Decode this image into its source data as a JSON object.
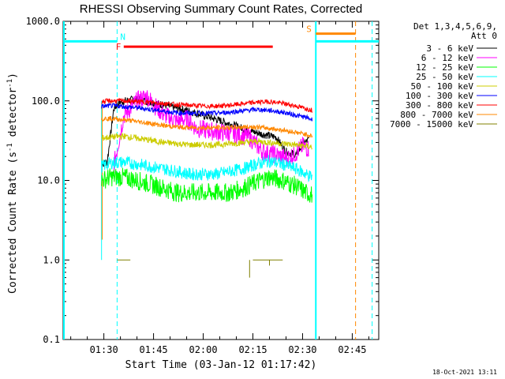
{
  "chart_data": {
    "type": "line",
    "title": "RHESSI Observing Summary Count Rates, Corrected",
    "xlabel": "Start Time (03-Jan-12 01:17:42)",
    "ylabel_main": "Corrected Count Rate (s",
    "ylabel_sup1": "-1",
    "ylabel_mid": " detector",
    "ylabel_sup2": "-1",
    "ylabel_end": ")",
    "y_scale": "log",
    "ylim": [
      0.1,
      1000.0
    ],
    "y_ticks": [
      {
        "value": 1000.0,
        "label": "1000.0"
      },
      {
        "value": 100.0,
        "label": "100.0"
      },
      {
        "value": 10.0,
        "label": "10.0"
      },
      {
        "value": 1.0,
        "label": "1.0"
      },
      {
        "value": 0.1,
        "label": "0.1"
      }
    ],
    "xlim_minutes": [
      17.7,
      59.0
    ],
    "x_ticks": [
      {
        "value": 30,
        "label": "01:30"
      },
      {
        "value": 45,
        "label": "01:45"
      },
      {
        "value": 60,
        "label": "02:00"
      },
      {
        "value": 75,
        "label": "02:15"
      },
      {
        "value": 90,
        "label": "02:30"
      },
      {
        "value": 105,
        "label": "02:45"
      }
    ],
    "x_unit": "minutes after 01:00 UT",
    "x_range": [
      17.7,
      113.0
    ],
    "legend_header": [
      "Det 1,3,4,5,6,9,",
      "Att 0"
    ],
    "series": [
      {
        "name": "3 - 6 keV",
        "color": "#000000",
        "points": [
          [
            29.3,
            16
          ],
          [
            31,
            17
          ],
          [
            33,
            80
          ],
          [
            35,
            97
          ],
          [
            38,
            103
          ],
          [
            42,
            102
          ],
          [
            46,
            93
          ],
          [
            50,
            85
          ],
          [
            54,
            78
          ],
          [
            58,
            70
          ],
          [
            62,
            62
          ],
          [
            66,
            55
          ],
          [
            70,
            48
          ],
          [
            74,
            42
          ],
          [
            78,
            38
          ],
          [
            82,
            35
          ],
          [
            85,
            23
          ],
          [
            88,
            21
          ],
          [
            90,
            28
          ],
          [
            92,
            33
          ]
        ]
      },
      {
        "name": "6 - 12 keV",
        "color": "#ff00ff",
        "points": [
          [
            33,
            15
          ],
          [
            36,
            65
          ],
          [
            40,
            100
          ],
          [
            43,
            115
          ],
          [
            45,
            90
          ],
          [
            48,
            68
          ],
          [
            52,
            55
          ],
          [
            55,
            60
          ],
          [
            58,
            45
          ],
          [
            62,
            42
          ],
          [
            66,
            40
          ],
          [
            70,
            38
          ],
          [
            74,
            35
          ],
          [
            78,
            23
          ],
          [
            82,
            21
          ],
          [
            85,
            19
          ],
          [
            88,
            22
          ],
          [
            90,
            27
          ],
          [
            92,
            25
          ]
        ]
      },
      {
        "name": "12 - 25 keV",
        "color": "#00ff00",
        "points": [
          [
            29.3,
            10
          ],
          [
            32,
            11
          ],
          [
            36,
            11
          ],
          [
            40,
            10
          ],
          [
            44,
            9
          ],
          [
            48,
            8
          ],
          [
            52,
            7
          ],
          [
            56,
            7
          ],
          [
            60,
            7
          ],
          [
            64,
            7
          ],
          [
            68,
            7
          ],
          [
            72,
            8
          ],
          [
            76,
            9.5
          ],
          [
            80,
            11
          ],
          [
            84,
            10
          ],
          [
            88,
            8.5
          ],
          [
            91,
            7
          ],
          [
            93,
            6.5
          ]
        ]
      },
      {
        "name": "25 - 50 keV",
        "color": "#00ffff",
        "points": [
          [
            29.3,
            15
          ],
          [
            32,
            16.5
          ],
          [
            36,
            17
          ],
          [
            40,
            16
          ],
          [
            44,
            15
          ],
          [
            48,
            14
          ],
          [
            52,
            13
          ],
          [
            56,
            12
          ],
          [
            60,
            12
          ],
          [
            64,
            12
          ],
          [
            68,
            13
          ],
          [
            72,
            14
          ],
          [
            76,
            16
          ],
          [
            80,
            17.5
          ],
          [
            84,
            16
          ],
          [
            88,
            14
          ],
          [
            91,
            12
          ],
          [
            93,
            11
          ]
        ]
      },
      {
        "name": "50 - 100 keV",
        "color": "#cccc00",
        "points": [
          [
            29.3,
            34
          ],
          [
            32,
            35
          ],
          [
            36,
            36
          ],
          [
            40,
            34
          ],
          [
            44,
            32
          ],
          [
            48,
            30
          ],
          [
            52,
            29
          ],
          [
            56,
            28
          ],
          [
            60,
            28
          ],
          [
            64,
            28
          ],
          [
            68,
            29
          ],
          [
            72,
            30
          ],
          [
            76,
            31
          ],
          [
            80,
            30
          ],
          [
            84,
            29
          ],
          [
            88,
            28
          ],
          [
            91,
            27
          ],
          [
            93,
            26
          ]
        ]
      },
      {
        "name": "100 - 300 keV",
        "color": "#0000ff",
        "points": [
          [
            29.3,
            85
          ],
          [
            32,
            87
          ],
          [
            36,
            85
          ],
          [
            40,
            82
          ],
          [
            44,
            78
          ],
          [
            48,
            74
          ],
          [
            52,
            71
          ],
          [
            56,
            70
          ],
          [
            60,
            70
          ],
          [
            64,
            70
          ],
          [
            68,
            72
          ],
          [
            72,
            75
          ],
          [
            76,
            78
          ],
          [
            80,
            76
          ],
          [
            84,
            72
          ],
          [
            88,
            66
          ],
          [
            91,
            62
          ],
          [
            93,
            58
          ]
        ]
      },
      {
        "name": "300 - 800 keV",
        "color": "#ff0000",
        "points": [
          [
            29.3,
            98
          ],
          [
            32,
            100
          ],
          [
            36,
            100
          ],
          [
            40,
            98
          ],
          [
            44,
            96
          ],
          [
            48,
            93
          ],
          [
            52,
            90
          ],
          [
            56,
            88
          ],
          [
            60,
            86
          ],
          [
            64,
            86
          ],
          [
            68,
            88
          ],
          [
            72,
            92
          ],
          [
            76,
            96
          ],
          [
            80,
            98
          ],
          [
            84,
            93
          ],
          [
            88,
            86
          ],
          [
            91,
            80
          ],
          [
            93,
            76
          ]
        ]
      },
      {
        "name": "800 - 7000 keV",
        "color": "#ff8800",
        "points": [
          [
            29.3,
            60
          ],
          [
            32,
            60
          ],
          [
            36,
            58
          ],
          [
            40,
            55
          ],
          [
            44,
            52
          ],
          [
            48,
            49
          ],
          [
            52,
            47
          ],
          [
            56,
            46
          ],
          [
            60,
            46
          ],
          [
            64,
            46
          ],
          [
            68,
            46
          ],
          [
            72,
            47
          ],
          [
            76,
            47
          ],
          [
            80,
            45
          ],
          [
            84,
            43
          ],
          [
            88,
            40
          ],
          [
            91,
            38
          ],
          [
            93,
            36
          ]
        ]
      },
      {
        "name": "7000 - 15000 keV",
        "color": "#808000",
        "points": [
          [
            34,
            1.0
          ],
          [
            38,
            1.0
          ],
          [
            74,
            0.6
          ],
          [
            75,
            1.0
          ],
          [
            79,
            1.0
          ],
          [
            80,
            0.9
          ],
          [
            81,
            1.0
          ],
          [
            84,
            1.0
          ]
        ]
      }
    ],
    "flags": [
      {
        "name": "N",
        "label": "N",
        "color": "#00ffff",
        "start": 17.7,
        "end": 34,
        "level": 560
      },
      {
        "name": "F",
        "label": "F",
        "color": "#ff0000",
        "start": 36,
        "end": 81,
        "level": 480
      },
      {
        "name": "S",
        "label": "S",
        "color": "#ff8800",
        "start": 94,
        "end": 106,
        "level": 700
      },
      {
        "name": "N-end",
        "label": "",
        "color": "#00ffff",
        "start": 94,
        "end": 113,
        "level": 560
      }
    ],
    "vlines": [
      {
        "x": 34,
        "color": "#00ffff",
        "style": "dashed"
      },
      {
        "x": 94,
        "color": "#00ffff",
        "style": "solid"
      },
      {
        "x": 106,
        "color": "#ff8800",
        "style": "dashed"
      },
      {
        "x": 111,
        "color": "#00ffff",
        "style": "dashed"
      }
    ],
    "footer_timestamp": "18-Oct-2021 13:11"
  }
}
